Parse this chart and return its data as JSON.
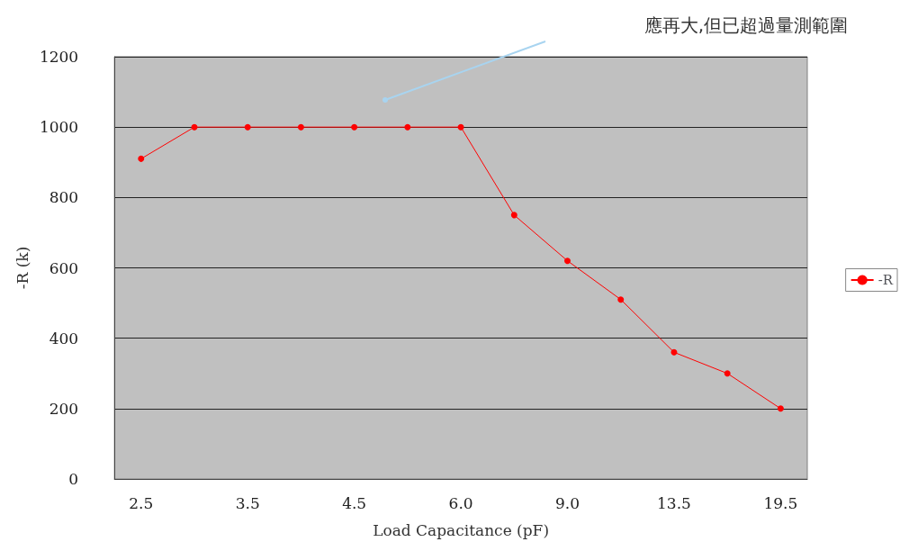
{
  "chart_data": {
    "type": "line",
    "xlabel": "Load Capacitance (pF)",
    "ylabel": "-R (k)",
    "categories": [
      "2.5",
      null,
      "3.5",
      null,
      "4.5",
      null,
      "6.0",
      null,
      "9.0",
      null,
      "13.5",
      null,
      "19.5"
    ],
    "series": [
      {
        "name": "-R",
        "color": "#ff0000",
        "values": [
          910,
          1000,
          1000,
          1000,
          1000,
          1000,
          1000,
          750,
          620,
          510,
          360,
          300,
          200
        ]
      }
    ],
    "ylim": [
      0,
      1200
    ],
    "yticks": [
      0,
      200,
      400,
      600,
      800,
      1000,
      1200
    ],
    "grid": "y",
    "legend": "right",
    "marker": "circle",
    "line_style": "solid",
    "annotations": [
      "應再大,但已超過量測範圍"
    ]
  }
}
